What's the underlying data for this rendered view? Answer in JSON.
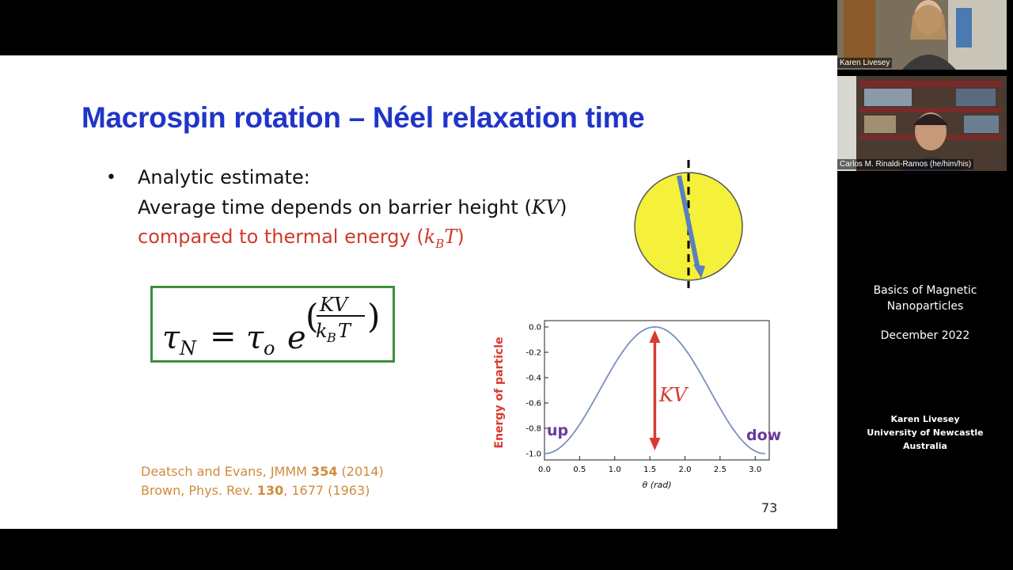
{
  "slide": {
    "title": "Macrospin rotation – Néel relaxation time",
    "bullet": "•",
    "line1": "Analytic estimate:",
    "line2_text": "Average time depends on barrier height (",
    "line2_math": "KV",
    "line2_end": ")",
    "line3_text": "compared to thermal energy (",
    "line3_math": "k",
    "line3_sub": "B",
    "line3_math2": "T",
    "line3_end": ")",
    "equation": {
      "tau": "τ",
      "sub_n": "N",
      "equals": "=",
      "sub_o": "o",
      "e": "e",
      "numerator": "KV",
      "denominator_k": "k",
      "denominator_sub": "B",
      "denominator_t": "T",
      "paren_open": "(",
      "paren_close": ")"
    },
    "references": {
      "ref1_pre": "Deatsch and Evans, JMMM ",
      "ref1_bold": "354",
      "ref1_post": " (2014)",
      "ref2_pre": "Brown, Phys. Rev. ",
      "ref2_bold": "130",
      "ref2_post": ", 1677 (1963)"
    },
    "page_number": "73"
  },
  "chart_data": {
    "type": "line",
    "x": [
      0.0,
      0.2,
      0.4,
      0.6,
      0.8,
      1.0,
      1.2,
      1.4,
      1.5708,
      1.8,
      2.0,
      2.2,
      2.4,
      2.6,
      2.8,
      3.0,
      3.1416
    ],
    "y": [
      -1.0,
      -0.961,
      -0.848,
      -0.681,
      -0.485,
      -0.292,
      -0.131,
      -0.029,
      0.0,
      -0.052,
      -0.173,
      -0.343,
      -0.537,
      -0.722,
      -0.885,
      -0.98,
      -1.0
    ],
    "xlabel": "θ (rad)",
    "ylabel": "Energy of particle",
    "xlim": [
      0,
      3.2
    ],
    "ylim": [
      -1.05,
      0.05
    ],
    "x_ticks": [
      "0.0",
      "0.5",
      "1.0",
      "1.5",
      "2.0",
      "2.5",
      "3.0"
    ],
    "y_ticks": [
      "0.0",
      "-0.2",
      "-0.4",
      "-0.6",
      "-0.8",
      "-1.0"
    ],
    "annotations": {
      "up": "up",
      "down": "down",
      "barrier": "KV"
    },
    "line_color": "#7a8fc0",
    "arrow_color": "#d93a2f",
    "label_color": "#6a3a9a"
  },
  "side_panel": {
    "participant1": "Karen Livesey",
    "participant2": "Carlos M. Rinaldi-Ramos (he/him/his)",
    "title_line1": "Basics of Magnetic",
    "title_line2": "Nanoparticles",
    "date": "December 2022",
    "author": "Karen Livesey",
    "affiliation": "University of Newcastle",
    "country": "Australia"
  },
  "colors": {
    "title": "#2035c8",
    "highlight": "#d03a2a",
    "eq_border": "#3b8f3b",
    "reference": "#d08a3c",
    "sphere": "#f5f03a"
  }
}
